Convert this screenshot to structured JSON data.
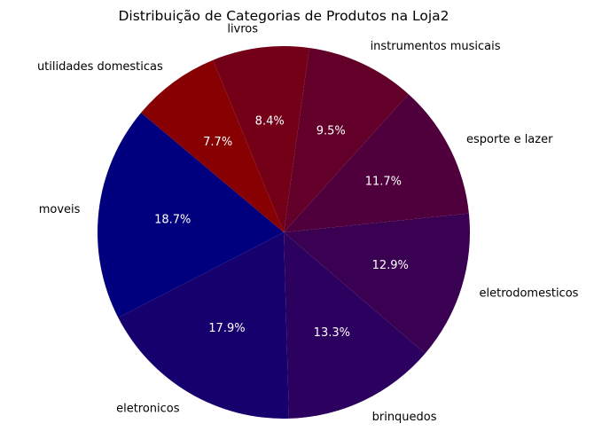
{
  "chart_data": {
    "type": "pie",
    "title": "Distribuição de Categorias de Produtos na Loja2",
    "start_angle_deg": 140,
    "direction": "counterclockwise",
    "slices": [
      {
        "label": "moveis",
        "value": 18.7,
        "pct_label": "18.7%",
        "color": "#00007f"
      },
      {
        "label": "eletronicos",
        "value": 17.9,
        "pct_label": "17.9%",
        "color": "#16006e"
      },
      {
        "label": "brinquedos",
        "value": 13.3,
        "pct_label": "13.3%",
        "color": "#2b005e"
      },
      {
        "label": "eletrodomesticos",
        "value": 12.9,
        "pct_label": "12.9%",
        "color": "#3a0051"
      },
      {
        "label": "esporte e lazer",
        "value": 11.7,
        "pct_label": "11.7%",
        "color": "#4f003c"
      },
      {
        "label": "instrumentos musicais",
        "value": 9.5,
        "pct_label": "9.5%",
        "color": "#630029"
      },
      {
        "label": "livros",
        "value": 8.4,
        "pct_label": "8.4%",
        "color": "#740017"
      },
      {
        "label": "utilidades domesticas",
        "value": 7.7,
        "pct_label": "7.7%",
        "color": "#870002"
      }
    ]
  }
}
